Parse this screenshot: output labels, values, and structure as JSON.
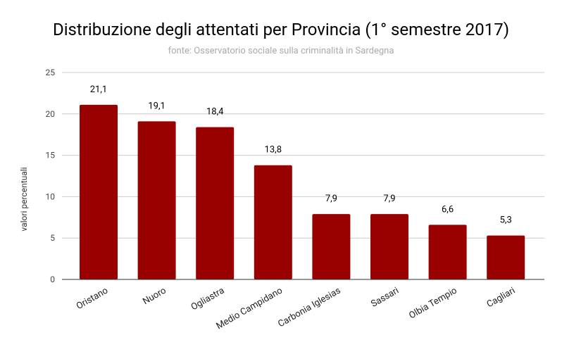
{
  "chart_data": {
    "type": "bar",
    "title": "Distribuzione degli attentati per Provincia (1° semestre  2017)",
    "subtitle": "fonte: Osservatorio sociale sulla criminalità in Sardegna",
    "y_label": "valori percentuali",
    "categories": [
      "Oristano",
      "Nuoro",
      "Ogliastra",
      "Medio Campidano",
      "Carbonia Iglesias",
      "Sassari",
      "Olbia Tempio",
      "Cagliari"
    ],
    "values": [
      21.1,
      19.1,
      18.4,
      13.8,
      7.9,
      7.9,
      6.6,
      5.3
    ],
    "value_labels": [
      "21,1",
      "19,1",
      "18,4",
      "13,8",
      "7,9",
      "7,9",
      "6,6",
      "5,3"
    ],
    "color": "#990000",
    "ylim": [
      0,
      25
    ],
    "yticks": [
      0,
      5,
      10,
      15,
      20,
      25
    ],
    "grid": true
  }
}
